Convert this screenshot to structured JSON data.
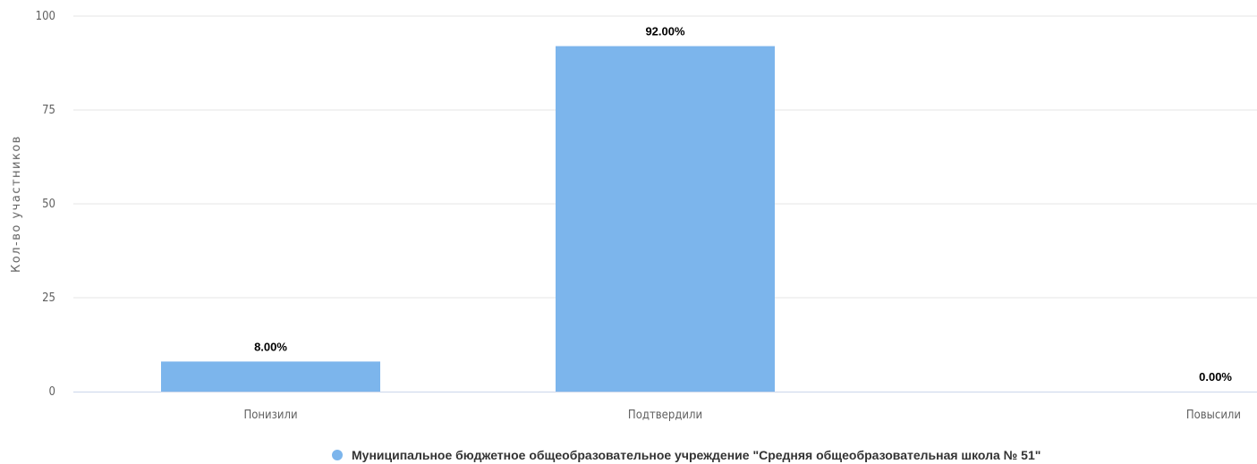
{
  "chart_data": {
    "type": "bar",
    "categories": [
      "Понизили",
      "Подтвердили",
      "Повысили"
    ],
    "series": [
      {
        "name": "Муниципальное бюджетное общеобразовательное учреждение \"Средняя общеобразовательная школа № 51\"",
        "values": [
          8.0,
          92.0,
          0.0
        ],
        "labels": [
          "8.00%",
          "92.00%",
          "0.00%"
        ],
        "color": "#7cb5ec"
      }
    ],
    "ylabel": "Кол-во участников",
    "ylim": [
      0,
      100
    ],
    "yticks": [
      0,
      25,
      50,
      75,
      100
    ],
    "grid": true,
    "legend_position": "bottom-center"
  }
}
